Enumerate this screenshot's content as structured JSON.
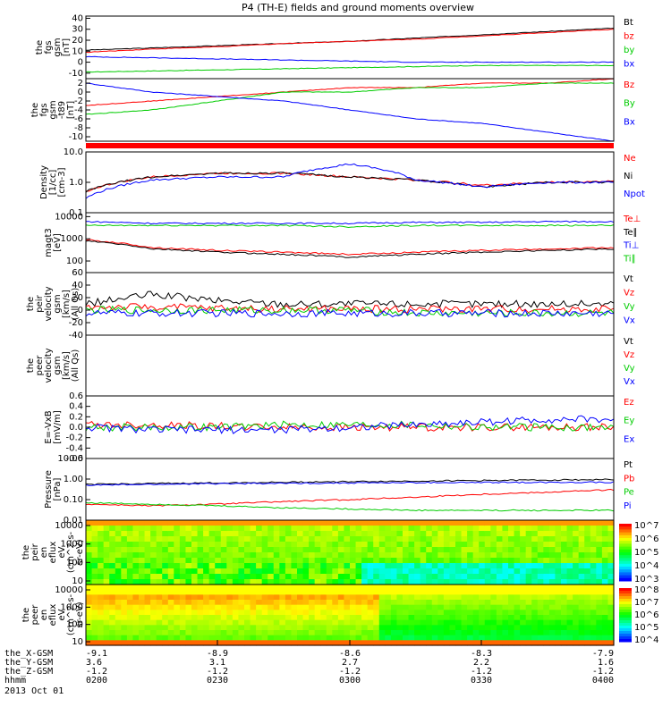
{
  "title": "P4 (TH-E) fields and ground moments overview",
  "date": "2013 Oct 01",
  "colors": {
    "black": "#000000",
    "red": "#ff0000",
    "green": "#00cc00",
    "blue": "#0000ff"
  },
  "ephemeris": {
    "rows": [
      {
        "label": "the_X-GSM",
        "values": [
          "-9.1",
          "-8.9",
          "-8.6",
          "-8.3",
          "-7.9"
        ]
      },
      {
        "label": "the_Y-GSM",
        "values": [
          "3.6",
          "3.1",
          "2.7",
          "2.2",
          "1.6"
        ]
      },
      {
        "label": "the_Z-GSM",
        "values": [
          "-1.2",
          "-1.2",
          "-1.2",
          "-1.2",
          "-1.2"
        ]
      },
      {
        "label": "hhmm",
        "values": [
          "0200",
          "0230",
          "0300",
          "0330",
          "0400"
        ]
      }
    ]
  },
  "chart_data": [
    {
      "type": "line",
      "panel": "fgs_gsm",
      "ylabel": [
        "the",
        "fgs",
        "gsm",
        "[nT]"
      ],
      "ylim": [
        -15,
        42
      ],
      "yticks": [
        -10,
        0,
        10,
        20,
        30,
        40
      ],
      "series": [
        {
          "name": "Bt",
          "color": "#000000",
          "values": [
            11,
            13,
            15,
            17,
            19,
            22,
            25,
            28,
            31
          ]
        },
        {
          "name": "bz",
          "color": "#ff0000",
          "values": [
            9,
            12,
            14,
            17,
            19,
            21,
            24,
            27,
            30
          ]
        },
        {
          "name": "by",
          "color": "#00cc00",
          "values": [
            -9,
            -8,
            -7,
            -6,
            -5,
            -4,
            -3,
            -3,
            -3
          ]
        },
        {
          "name": "bx",
          "color": "#0000ff",
          "values": [
            5,
            4,
            3,
            2,
            1,
            0,
            0,
            0,
            0
          ]
        }
      ]
    },
    {
      "type": "line",
      "panel": "fgs_gsm_t89",
      "ylabel": [
        "the",
        "fgs",
        "gsm",
        "-t89",
        "[nT]"
      ],
      "ylim": [
        -11,
        3
      ],
      "yticks": [
        -10,
        -8,
        -6,
        -4,
        -2,
        0,
        2
      ],
      "series": [
        {
          "name": "Bz",
          "color": "#ff0000",
          "values": [
            -3,
            -2,
            -1,
            0,
            1,
            1,
            2,
            2,
            3
          ]
        },
        {
          "name": "By",
          "color": "#00cc00",
          "values": [
            -5,
            -4,
            -2,
            0,
            0,
            1,
            1,
            2,
            2
          ]
        },
        {
          "name": "Bx",
          "color": "#0000ff",
          "values": [
            2,
            0,
            -1,
            -2,
            -4,
            -6,
            -7,
            -9,
            -11
          ]
        }
      ]
    },
    {
      "type": "line",
      "panel": "density",
      "yscale": "log",
      "ylabel": [
        "Density",
        "[1/cc]",
        "[cm-3]"
      ],
      "ylim": [
        0.1,
        10
      ],
      "yticklabels": [
        "0.1",
        "1.0",
        "10.0"
      ],
      "series": [
        {
          "name": "Ne",
          "color": "#ff0000",
          "values": [
            0.5,
            1.5,
            2,
            2,
            1.5,
            1.2,
            0.8,
            1,
            1.1
          ]
        },
        {
          "name": "Ni",
          "color": "#000000",
          "values": [
            0.5,
            1.5,
            2,
            2,
            1.5,
            1.2,
            0.7,
            1,
            1
          ]
        },
        {
          "name": "Npot",
          "color": "#0000ff",
          "values": [
            0.3,
            1.2,
            1.5,
            1.5,
            4,
            1.2,
            0.7,
            1,
            1
          ]
        }
      ]
    },
    {
      "type": "line",
      "panel": "temperature",
      "yscale": "log",
      "ylabel": [
        "magt3",
        "[eV]"
      ],
      "ylim": [
        30,
        15000
      ],
      "yticklabels": [
        "100",
        "1000",
        "10000"
      ],
      "series": [
        {
          "name": "Te⊥",
          "color": "#ff0000",
          "values": [
            900,
            400,
            300,
            250,
            200,
            250,
            300,
            350,
            400
          ]
        },
        {
          "name": "Te∥",
          "color": "#000000",
          "values": [
            800,
            350,
            250,
            200,
            150,
            200,
            250,
            300,
            350
          ]
        },
        {
          "name": "Ti⊥",
          "color": "#0000ff",
          "values": [
            6000,
            5000,
            5000,
            5000,
            5000,
            5500,
            5500,
            6000,
            6000
          ]
        },
        {
          "name": "Ti∥",
          "color": "#00cc00",
          "values": [
            4000,
            4000,
            4000,
            4000,
            3500,
            4000,
            4000,
            4000,
            4000
          ]
        }
      ]
    },
    {
      "type": "line",
      "panel": "peir_velocity",
      "ylabel": [
        "the",
        "peir",
        "velocity",
        "gsm",
        "[km/s]",
        "(All Qs)"
      ],
      "ylim": [
        -40,
        60
      ],
      "yticks": [
        -40,
        -20,
        0,
        20,
        40,
        60
      ],
      "series": [
        {
          "name": "Vt",
          "color": "#000000",
          "values": [
            10,
            25,
            15,
            10,
            10,
            10,
            10,
            10,
            10
          ]
        },
        {
          "name": "Vz",
          "color": "#ff0000",
          "values": [
            5,
            5,
            3,
            2,
            2,
            2,
            2,
            2,
            2
          ]
        },
        {
          "name": "Vy",
          "color": "#00cc00",
          "values": [
            0,
            0,
            0,
            0,
            0,
            -5,
            -5,
            -5,
            -5
          ]
        },
        {
          "name": "Vx",
          "color": "#0000ff",
          "values": [
            -5,
            -5,
            -5,
            -5,
            -5,
            -5,
            -5,
            -5,
            -5
          ]
        }
      ]
    },
    {
      "type": "line",
      "panel": "peer_velocity",
      "ylabel": [
        "the",
        "peer",
        "velocity",
        "gsm",
        "[km/s]",
        "(All Qs)"
      ],
      "ylim": [
        0,
        1
      ],
      "yticks": [],
      "series": [
        {
          "name": "Vt",
          "color": "#000000",
          "values": []
        },
        {
          "name": "Vz",
          "color": "#ff0000",
          "values": []
        },
        {
          "name": "Vy",
          "color": "#00cc00",
          "values": []
        },
        {
          "name": "Vx",
          "color": "#0000ff",
          "values": []
        }
      ]
    },
    {
      "type": "line",
      "panel": "e_field",
      "ylabel": [
        "E=-VxB",
        "[mV/m]"
      ],
      "ylim": [
        -0.6,
        0.6
      ],
      "yticks": [
        -0.6,
        -0.4,
        -0.2,
        0,
        0.2,
        0.4,
        0.6
      ],
      "yticklabels": [
        "-0.6",
        "-0.4",
        "-0.2",
        "0.0",
        "0.2",
        "0.4",
        "0.6"
      ],
      "series": [
        {
          "name": "Ez",
          "color": "#ff0000",
          "values": [
            0.05,
            0.05,
            0.02,
            0,
            0,
            0,
            0,
            0,
            0
          ]
        },
        {
          "name": "Ey",
          "color": "#00cc00",
          "values": [
            0,
            0,
            0,
            0.05,
            0.05,
            0.05,
            0,
            0,
            0
          ]
        },
        {
          "name": "Ex",
          "color": "#0000ff",
          "values": [
            0,
            -0.05,
            -0.05,
            -0.05,
            0,
            0.05,
            0.1,
            0.15,
            0.15
          ]
        }
      ]
    },
    {
      "type": "line",
      "panel": "pressure",
      "yscale": "log",
      "ylabel": [
        "Pressure",
        "[nPa]"
      ],
      "ylim": [
        0.01,
        10
      ],
      "yticklabels": [
        "0.01",
        "0.10",
        "1.00",
        "10.00"
      ],
      "series": [
        {
          "name": "Pt",
          "color": "#000000",
          "values": [
            0.55,
            0.6,
            0.65,
            0.7,
            0.75,
            0.8,
            0.85,
            0.9,
            0.95
          ]
        },
        {
          "name": "Pb",
          "color": "#ff0000",
          "values": [
            0.06,
            0.05,
            0.06,
            0.08,
            0.1,
            0.13,
            0.18,
            0.23,
            0.3
          ]
        },
        {
          "name": "Pe",
          "color": "#00cc00",
          "values": [
            0.07,
            0.06,
            0.05,
            0.04,
            0.035,
            0.03,
            0.03,
            0.03,
            0.03
          ]
        },
        {
          "name": "Pi",
          "color": "#0000ff",
          "values": [
            0.5,
            0.55,
            0.6,
            0.62,
            0.65,
            0.67,
            0.68,
            0.7,
            0.7
          ]
        }
      ]
    },
    {
      "type": "heatmap",
      "panel": "peir_spectrogram",
      "yscale": "log",
      "ylabel": [
        "the",
        "peir",
        "en",
        "eflux",
        "eV",
        "(cm^2-s-",
        "sr-eV)"
      ],
      "yticklabels": [
        "10",
        "100",
        "1000",
        "10000"
      ],
      "colorbar_ticks": [
        "10^3",
        "10^4",
        "10^5",
        "10^6",
        "10^7"
      ]
    },
    {
      "type": "heatmap",
      "panel": "peer_spectrogram",
      "yscale": "log",
      "ylabel": [
        "the",
        "peer",
        "en",
        "eflux",
        "eV",
        "(cm^2-s-",
        "sr-eV)"
      ],
      "yticklabels": [
        "10",
        "100",
        "1000",
        "10000"
      ],
      "colorbar_ticks": [
        "10^4",
        "10^5",
        "10^6",
        "10^7",
        "10^8"
      ]
    }
  ]
}
